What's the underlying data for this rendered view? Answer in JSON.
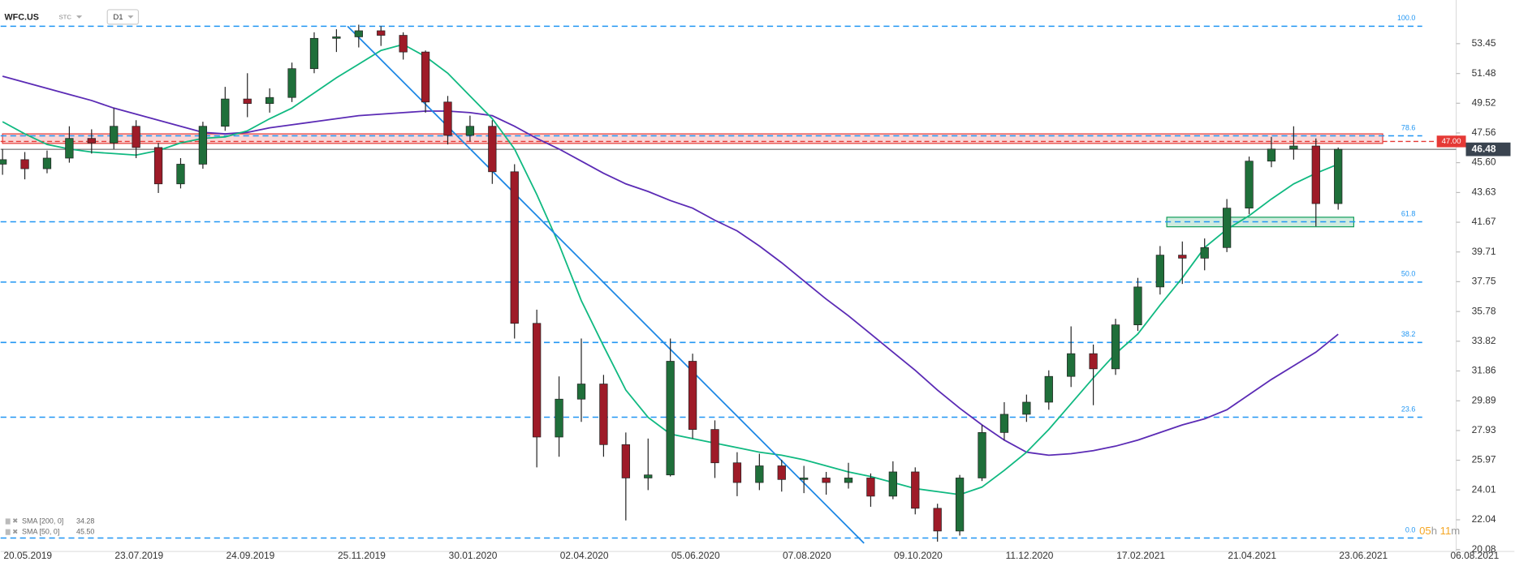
{
  "chart_data": {
    "type": "candlestick",
    "symbol": "WFC.US",
    "source": "STC",
    "timeframe": "D1",
    "up_color": "#1f6f3a",
    "down_color": "#9e1b28",
    "ylim": [
      20.08,
      56.33
    ],
    "yticks": [
      53.45,
      51.48,
      49.52,
      47.56,
      45.6,
      43.63,
      41.67,
      39.71,
      37.75,
      35.78,
      33.82,
      31.86,
      29.89,
      27.93,
      25.97,
      24.01,
      22.04,
      20.08
    ],
    "ytick_labels": [
      "53.45",
      "51.48",
      "49.52",
      "47.56",
      "45.60",
      "43.63",
      "41.67",
      "39.71",
      "37.75",
      "35.78",
      "33.82",
      "31.86",
      "29.89",
      "27.93",
      "25.97",
      "24.01",
      "22.04",
      "20.08"
    ],
    "x_labels": [
      "20.05.2019",
      "23.07.2019",
      "24.09.2019",
      "25.11.2019",
      "30.01.2020",
      "02.04.2020",
      "05.06.2020",
      "07.08.2020",
      "09.10.2020",
      "11.12.2020",
      "17.02.2021",
      "21.04.2021",
      "23.06.2021",
      "06.08.2021"
    ],
    "ohlc": [
      [
        45.5,
        46.5,
        44.8,
        45.8
      ],
      [
        45.8,
        46.3,
        44.5,
        45.2
      ],
      [
        45.2,
        46.4,
        44.9,
        45.9
      ],
      [
        45.9,
        48.0,
        45.6,
        47.2
      ],
      [
        47.2,
        47.8,
        46.2,
        46.9
      ],
      [
        46.9,
        49.2,
        46.5,
        48.0
      ],
      [
        48.0,
        48.4,
        45.9,
        46.6
      ],
      [
        46.6,
        46.9,
        43.6,
        44.2
      ],
      [
        44.2,
        45.9,
        43.9,
        45.5
      ],
      [
        45.5,
        48.3,
        45.2,
        48.0
      ],
      [
        48.0,
        50.6,
        47.7,
        49.8
      ],
      [
        49.8,
        51.5,
        48.6,
        49.5
      ],
      [
        49.5,
        50.5,
        48.9,
        49.9
      ],
      [
        49.9,
        52.2,
        49.6,
        51.8
      ],
      [
        51.8,
        54.2,
        51.5,
        53.8
      ],
      [
        53.8,
        54.4,
        52.9,
        53.9
      ],
      [
        53.9,
        54.7,
        53.2,
        54.3
      ],
      [
        54.3,
        54.6,
        53.3,
        54.0
      ],
      [
        54.0,
        54.2,
        52.4,
        52.9
      ],
      [
        52.9,
        53.0,
        48.9,
        49.6
      ],
      [
        49.6,
        50.0,
        46.8,
        47.4
      ],
      [
        47.4,
        48.7,
        47.0,
        48.0
      ],
      [
        48.0,
        48.4,
        44.2,
        45.0
      ],
      [
        45.0,
        45.5,
        34.0,
        35.0
      ],
      [
        35.0,
        35.9,
        25.5,
        27.5
      ],
      [
        27.5,
        31.5,
        26.2,
        30.0
      ],
      [
        30.0,
        34.0,
        28.5,
        31.0
      ],
      [
        31.0,
        31.6,
        26.2,
        27.0
      ],
      [
        27.0,
        27.8,
        22.0,
        24.8
      ],
      [
        24.8,
        27.4,
        24.0,
        25.0
      ],
      [
        25.0,
        34.0,
        24.9,
        32.5
      ],
      [
        32.5,
        33.0,
        27.4,
        28.0
      ],
      [
        28.0,
        28.6,
        24.8,
        25.8
      ],
      [
        25.8,
        26.5,
        23.6,
        24.5
      ],
      [
        24.5,
        26.4,
        24.0,
        25.6
      ],
      [
        25.6,
        26.0,
        23.9,
        24.7
      ],
      [
        24.7,
        25.6,
        23.8,
        24.8
      ],
      [
        24.8,
        25.2,
        23.7,
        24.5
      ],
      [
        24.5,
        25.8,
        24.1,
        24.8
      ],
      [
        24.8,
        25.1,
        22.9,
        23.6
      ],
      [
        23.6,
        25.9,
        23.4,
        25.2
      ],
      [
        25.2,
        25.5,
        22.4,
        22.8
      ],
      [
        22.8,
        23.1,
        20.6,
        21.3
      ],
      [
        21.3,
        25.0,
        21.0,
        24.8
      ],
      [
        24.8,
        28.3,
        24.6,
        27.8
      ],
      [
        27.8,
        29.8,
        27.3,
        29.0
      ],
      [
        29.0,
        30.3,
        28.5,
        29.8
      ],
      [
        29.8,
        31.9,
        29.3,
        31.5
      ],
      [
        31.5,
        34.8,
        30.8,
        33.0
      ],
      [
        33.0,
        33.6,
        29.6,
        32.0
      ],
      [
        32.0,
        35.3,
        31.6,
        34.9
      ],
      [
        34.9,
        38.0,
        34.5,
        37.4
      ],
      [
        37.4,
        40.1,
        36.9,
        39.5
      ],
      [
        39.5,
        40.4,
        37.6,
        39.3
      ],
      [
        39.3,
        40.6,
        38.5,
        40.0
      ],
      [
        40.0,
        43.2,
        39.7,
        42.6
      ],
      [
        42.6,
        46.0,
        42.2,
        45.7
      ],
      [
        45.7,
        47.3,
        45.3,
        46.5
      ],
      [
        46.5,
        48.0,
        45.8,
        46.7
      ],
      [
        46.7,
        47.2,
        41.4,
        42.9
      ],
      [
        42.9,
        46.6,
        42.5,
        46.48
      ]
    ],
    "sma": [
      {
        "name": "SMA [200, 0]",
        "last": 34.28,
        "color": "#5b2bb5",
        "values": [
          51.3,
          50.9,
          50.5,
          50.1,
          49.7,
          49.2,
          48.8,
          48.4,
          48.0,
          47.6,
          47.5,
          47.6,
          47.9,
          48.1,
          48.3,
          48.5,
          48.7,
          48.8,
          48.9,
          49.0,
          49.0,
          48.9,
          48.7,
          48.0,
          47.2,
          46.5,
          45.7,
          44.9,
          44.2,
          43.7,
          43.1,
          42.6,
          41.8,
          41.1,
          40.1,
          39.0,
          37.8,
          36.6,
          35.5,
          34.3,
          33.1,
          31.9,
          30.6,
          29.4,
          28.3,
          27.3,
          26.5,
          26.3,
          26.4,
          26.6,
          26.9,
          27.3,
          27.8,
          28.3,
          28.7,
          29.3,
          30.3,
          31.3,
          32.2,
          33.1,
          34.28
        ]
      },
      {
        "name": "SMA [50, 0]",
        "last": 45.5,
        "color": "#10b981",
        "values": [
          48.3,
          47.5,
          46.8,
          46.5,
          46.3,
          46.2,
          46.1,
          46.4,
          46.9,
          47.2,
          47.3,
          47.7,
          48.5,
          49.2,
          50.2,
          51.2,
          52.1,
          53.0,
          53.4,
          52.6,
          51.5,
          50.0,
          48.5,
          46.5,
          43.5,
          40.2,
          36.5,
          33.5,
          30.6,
          28.8,
          27.7,
          27.4,
          27.1,
          26.8,
          26.5,
          26.3,
          26.0,
          25.6,
          25.2,
          24.9,
          24.5,
          24.1,
          23.9,
          23.7,
          24.2,
          25.3,
          26.5,
          28.0,
          29.7,
          31.4,
          33.0,
          34.3,
          36.2,
          38.0,
          40.0,
          41.2,
          42.1,
          43.2,
          44.2,
          44.9,
          45.5
        ]
      }
    ],
    "sma_last_labels": [
      "34.28",
      "45.50"
    ],
    "fib": [
      {
        "value": 54.6,
        "label": "100.0"
      },
      {
        "value": 47.37,
        "label": "78.6"
      },
      {
        "value": 41.7,
        "label": "61.8"
      },
      {
        "value": 37.72,
        "label": "50.0"
      },
      {
        "value": 33.74,
        "label": "38.2"
      },
      {
        "value": 28.81,
        "label": "23.6"
      },
      {
        "value": 20.84,
        "label": "0.0"
      }
    ],
    "fib_color": "#2196f3",
    "trendline": {
      "x": [
        15.5,
        38.7
      ],
      "y": [
        54.6,
        20.5
      ],
      "color": "#1e88e5"
    },
    "zones": [
      {
        "low": 46.87,
        "high": 47.5,
        "x": [
          0,
          62
        ],
        "color": "#e53935"
      },
      {
        "low": 41.37,
        "high": 42.0,
        "x": [
          52.3,
          60.7
        ],
        "color": "#0f9d58"
      }
    ],
    "alert": {
      "value": 47,
      "label": "47.00",
      "color": "#e53935"
    },
    "current_price": 46.48,
    "countdown": [
      "05",
      "h",
      "11",
      "m"
    ]
  }
}
